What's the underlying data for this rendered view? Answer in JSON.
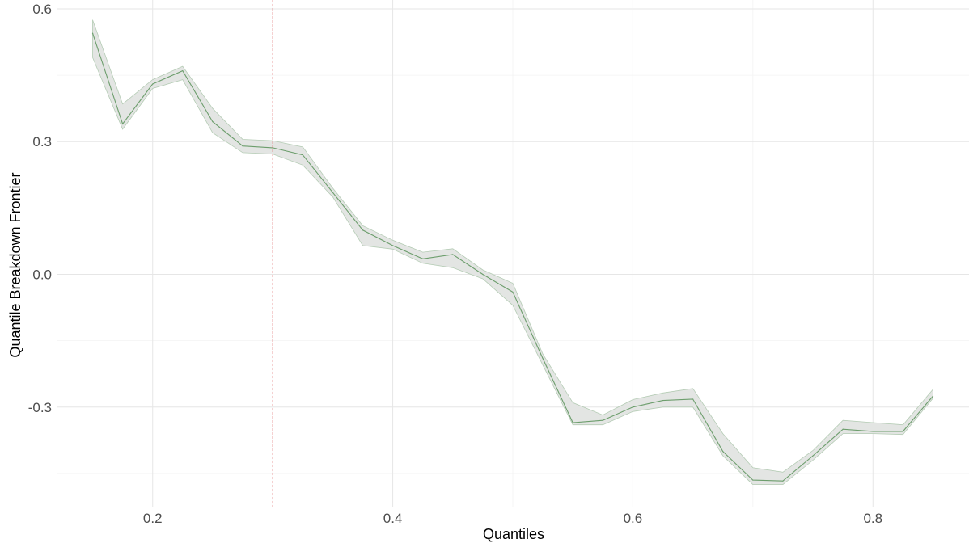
{
  "chart_data": {
    "type": "line",
    "title": "",
    "xlabel": "Quantiles",
    "ylabel": "Quantile Breakdown Frontier",
    "xlim": [
      0.12,
      0.88
    ],
    "ylim": [
      -0.525,
      0.62
    ],
    "x_ticks": [
      0.2,
      0.4,
      0.6,
      0.8
    ],
    "x_tick_labels": [
      "0.2",
      "0.4",
      "0.6",
      "0.8"
    ],
    "y_ticks": [
      -0.3,
      0.0,
      0.3,
      0.6
    ],
    "y_tick_labels": [
      "-0.3",
      "0.0",
      "0.3",
      "0.6"
    ],
    "grid": true,
    "legend": "none",
    "vline": {
      "x": 0.3,
      "color": "#e06666",
      "style": "dashed"
    },
    "band_color": "#e3e5e3",
    "band_edge_color": "#b5ccb5",
    "line_color": "#6d9e6d",
    "series": [
      {
        "x": [
          0.15,
          0.175,
          0.2,
          0.225,
          0.25,
          0.275,
          0.3,
          0.325,
          0.35,
          0.375,
          0.4,
          0.425,
          0.45,
          0.475,
          0.5,
          0.525,
          0.55,
          0.575,
          0.6,
          0.625,
          0.65,
          0.675,
          0.7,
          0.725,
          0.75,
          0.775,
          0.8,
          0.825,
          0.85
        ],
        "y": [
          0.545,
          0.34,
          0.43,
          0.46,
          0.345,
          0.29,
          0.286,
          0.27,
          0.185,
          0.1,
          0.065,
          0.035,
          0.045,
          0.0,
          -0.04,
          -0.19,
          -0.335,
          -0.33,
          -0.3,
          -0.285,
          -0.282,
          -0.4,
          -0.465,
          -0.467,
          -0.41,
          -0.35,
          -0.355,
          -0.355,
          -0.275
        ],
        "lower": [
          0.49,
          0.328,
          0.42,
          0.44,
          0.32,
          0.275,
          0.272,
          0.247,
          0.175,
          0.065,
          0.057,
          0.025,
          0.015,
          -0.01,
          -0.07,
          -0.205,
          -0.34,
          -0.34,
          -0.31,
          -0.3,
          -0.3,
          -0.41,
          -0.475,
          -0.475,
          -0.42,
          -0.36,
          -0.36,
          -0.362,
          -0.28
        ],
        "upper": [
          0.575,
          0.385,
          0.44,
          0.47,
          0.375,
          0.305,
          0.302,
          0.288,
          0.195,
          0.11,
          0.077,
          0.05,
          0.058,
          0.01,
          -0.02,
          -0.18,
          -0.29,
          -0.318,
          -0.283,
          -0.268,
          -0.258,
          -0.36,
          -0.437,
          -0.447,
          -0.398,
          -0.33,
          -0.335,
          -0.34,
          -0.26
        ]
      }
    ]
  }
}
